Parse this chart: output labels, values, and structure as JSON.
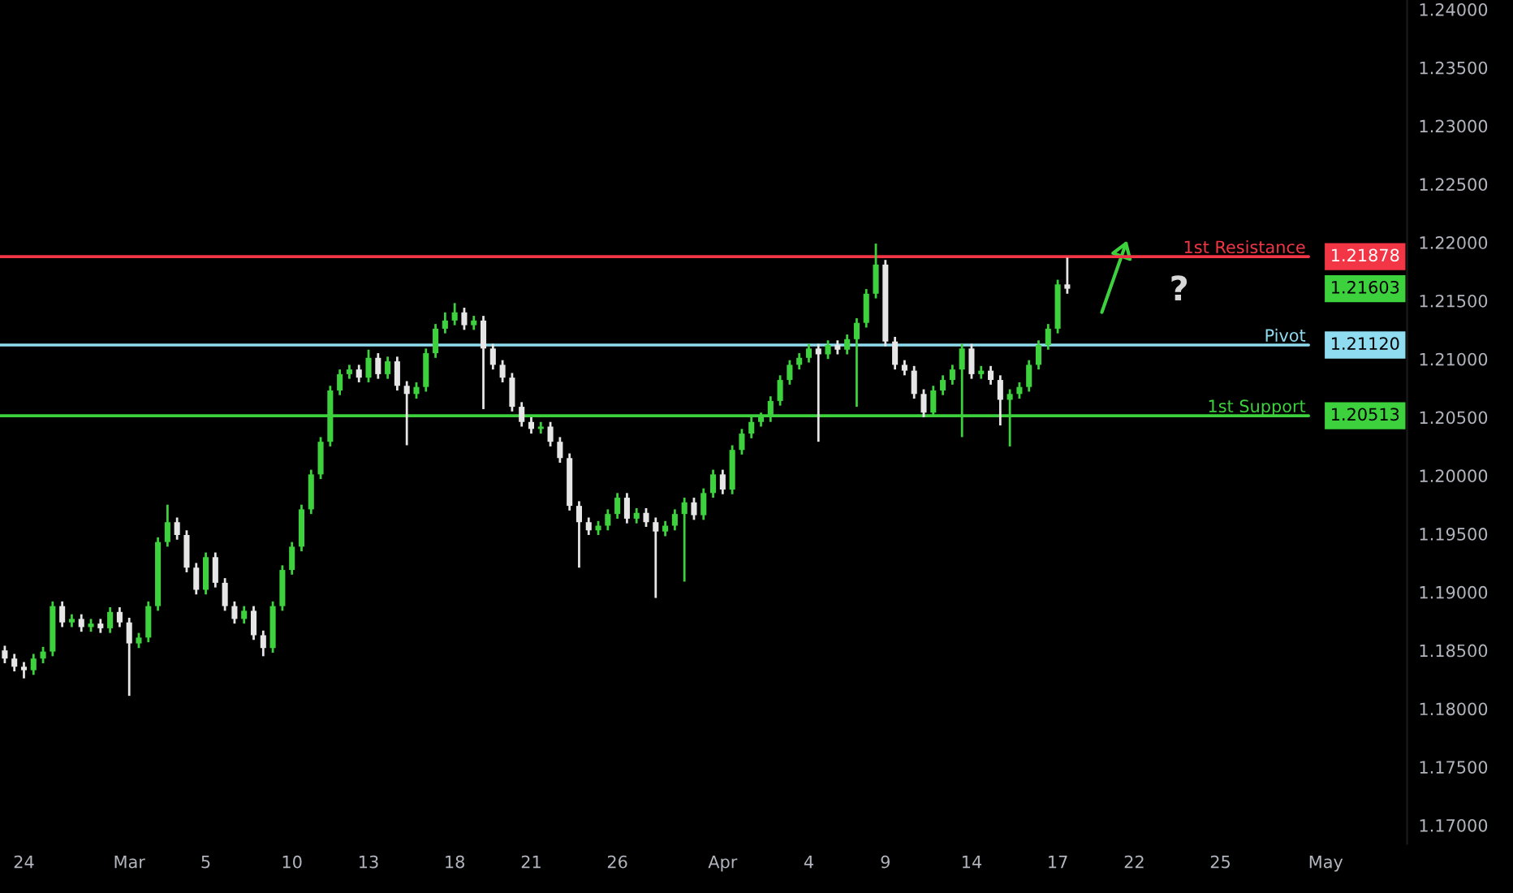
{
  "chart_data": {
    "type": "candlestick",
    "categories": [
      null,
      null,
      "24",
      null,
      null,
      null,
      null,
      null,
      null,
      null,
      null,
      null,
      null,
      "Mar",
      null,
      null,
      null,
      null,
      null,
      null,
      null,
      "5",
      null,
      null,
      null,
      null,
      null,
      null,
      null,
      null,
      "10",
      null,
      null,
      null,
      null,
      null,
      null,
      null,
      "13",
      null,
      null,
      null,
      null,
      null,
      null,
      null,
      null,
      "18",
      null,
      null,
      null,
      null,
      null,
      null,
      null,
      "21",
      null,
      null,
      null,
      null,
      null,
      null,
      null,
      null,
      "26",
      null,
      null,
      null,
      null,
      null,
      null,
      null,
      null,
      null,
      null,
      "Apr",
      null,
      null,
      null,
      null,
      null,
      null,
      null,
      null,
      "4",
      null,
      null,
      null,
      null,
      null,
      null,
      null,
      "9",
      null,
      null,
      null,
      null,
      null,
      null,
      null,
      null,
      "14",
      null,
      null,
      null,
      null,
      null,
      null,
      null,
      null,
      "17",
      null,
      null,
      null,
      null,
      null,
      null,
      null,
      "22",
      null,
      null,
      null,
      null,
      null,
      null,
      null,
      null,
      "25",
      null,
      null,
      null,
      null,
      null,
      null,
      null,
      null,
      null,
      null,
      "May",
      null,
      null,
      null,
      null,
      null,
      null,
      null,
      null
    ],
    "ohlc": [
      [
        1.185,
        1.1854,
        1.1839,
        1.1843
      ],
      [
        1.1843,
        1.1847,
        1.1832,
        1.1836
      ],
      [
        1.1836,
        1.184,
        1.1826,
        1.1833
      ],
      [
        1.1833,
        1.1847,
        1.1829,
        1.1843
      ],
      [
        1.1843,
        1.1853,
        1.1839,
        1.1849
      ],
      [
        1.1849,
        1.1892,
        1.1845,
        1.1888
      ],
      [
        1.1888,
        1.1892,
        1.187,
        1.1874
      ],
      [
        1.1874,
        1.1881,
        1.187,
        1.1877
      ],
      [
        1.1877,
        1.1881,
        1.1866,
        1.187
      ],
      [
        1.187,
        1.1877,
        1.1866,
        1.1873
      ],
      [
        1.1873,
        1.1877,
        1.1865,
        1.1869
      ],
      [
        1.1869,
        1.1887,
        1.1865,
        1.1883
      ],
      [
        1.1883,
        1.1887,
        1.187,
        1.1874
      ],
      [
        1.1874,
        1.1878,
        1.1811,
        1.1856
      ],
      [
        1.1856,
        1.1865,
        1.1852,
        1.1861
      ],
      [
        1.1861,
        1.1892,
        1.1857,
        1.1888
      ],
      [
        1.1888,
        1.1947,
        1.1884,
        1.1943
      ],
      [
        1.1943,
        1.1975,
        1.1939,
        1.196
      ],
      [
        1.196,
        1.1964,
        1.1945,
        1.1949
      ],
      [
        1.1949,
        1.1953,
        1.1917,
        1.1921
      ],
      [
        1.1921,
        1.1925,
        1.1898,
        1.1902
      ],
      [
        1.1902,
        1.1934,
        1.1898,
        1.193
      ],
      [
        1.193,
        1.1934,
        1.1904,
        1.1908
      ],
      [
        1.1908,
        1.1912,
        1.1884,
        1.1888
      ],
      [
        1.1888,
        1.1892,
        1.1873,
        1.1877
      ],
      [
        1.1877,
        1.1888,
        1.1873,
        1.1884
      ],
      [
        1.1884,
        1.1888,
        1.1859,
        1.1863
      ],
      [
        1.1863,
        1.1867,
        1.1845,
        1.1852
      ],
      [
        1.1852,
        1.1892,
        1.1848,
        1.1888
      ],
      [
        1.1888,
        1.1923,
        1.1884,
        1.1919
      ],
      [
        1.1919,
        1.1943,
        1.1915,
        1.1939
      ],
      [
        1.1939,
        1.1975,
        1.1935,
        1.1971
      ],
      [
        1.1971,
        1.2005,
        1.1967,
        1.2001
      ],
      [
        1.2001,
        1.2033,
        1.1997,
        1.2029
      ],
      [
        1.2029,
        1.2077,
        1.2025,
        1.2073
      ],
      [
        1.2073,
        1.2091,
        1.2069,
        1.2087
      ],
      [
        1.2087,
        1.2095,
        1.2083,
        1.2091
      ],
      [
        1.2091,
        1.2095,
        1.208,
        1.2084
      ],
      [
        1.2084,
        1.2108,
        1.208,
        1.2101
      ],
      [
        1.2101,
        1.2105,
        1.2083,
        1.2087
      ],
      [
        1.2087,
        1.2102,
        1.2083,
        1.2098
      ],
      [
        1.2098,
        1.2102,
        1.2073,
        1.2077
      ],
      [
        1.2077,
        1.2081,
        1.2026,
        1.207
      ],
      [
        1.207,
        1.208,
        1.2066,
        1.2076
      ],
      [
        1.2076,
        1.2109,
        1.2072,
        1.2105
      ],
      [
        1.2105,
        1.213,
        1.2101,
        1.2126
      ],
      [
        1.2126,
        1.214,
        1.2122,
        1.2133
      ],
      [
        1.2133,
        1.2148,
        1.2129,
        1.214
      ],
      [
        1.214,
        1.2144,
        1.2125,
        1.2129
      ],
      [
        1.2129,
        1.2137,
        1.2125,
        1.2133
      ],
      [
        1.2133,
        1.2137,
        1.2057,
        1.2109
      ],
      [
        1.2109,
        1.2113,
        1.2091,
        1.2095
      ],
      [
        1.2095,
        1.2099,
        1.208,
        1.2084
      ],
      [
        1.2084,
        1.2088,
        1.2055,
        1.2059
      ],
      [
        1.2059,
        1.2063,
        1.2042,
        1.2046
      ],
      [
        1.2046,
        1.205,
        1.2036,
        1.204
      ],
      [
        1.204,
        1.2046,
        1.2036,
        1.2042
      ],
      [
        1.2042,
        1.2046,
        1.2025,
        1.2029
      ],
      [
        1.2029,
        1.2033,
        1.2011,
        1.2015
      ],
      [
        1.2015,
        1.2019,
        1.197,
        1.1974
      ],
      [
        1.1974,
        1.1978,
        1.1921,
        1.196
      ],
      [
        1.196,
        1.1964,
        1.1949,
        1.1953
      ],
      [
        1.1953,
        1.1961,
        1.1949,
        1.1957
      ],
      [
        1.1957,
        1.1971,
        1.1953,
        1.1967
      ],
      [
        1.1967,
        1.1985,
        1.1963,
        1.1981
      ],
      [
        1.1981,
        1.1985,
        1.1959,
        1.1963
      ],
      [
        1.1963,
        1.1972,
        1.1959,
        1.1968
      ],
      [
        1.1968,
        1.1972,
        1.1956,
        1.196
      ],
      [
        1.196,
        1.1964,
        1.1895,
        1.1952
      ],
      [
        1.1952,
        1.1961,
        1.1948,
        1.1957
      ],
      [
        1.1957,
        1.1971,
        1.1953,
        1.1967
      ],
      [
        1.1967,
        1.1981,
        1.1909,
        1.1977
      ],
      [
        1.1977,
        1.1981,
        1.1962,
        1.1966
      ],
      [
        1.1966,
        1.1989,
        1.1962,
        1.1985
      ],
      [
        1.1985,
        1.2005,
        1.1981,
        1.2001
      ],
      [
        1.2001,
        1.2005,
        1.1984,
        1.1988
      ],
      [
        1.1988,
        1.2026,
        1.1984,
        1.2022
      ],
      [
        1.2022,
        1.204,
        1.2018,
        1.2036
      ],
      [
        1.2036,
        1.205,
        1.2032,
        1.2046
      ],
      [
        1.2046,
        1.2054,
        1.2042,
        1.205
      ],
      [
        1.205,
        1.2068,
        1.2046,
        1.2064
      ],
      [
        1.2064,
        1.2086,
        1.206,
        1.2082
      ],
      [
        1.2082,
        1.2099,
        1.2078,
        1.2095
      ],
      [
        1.2095,
        1.2105,
        1.2091,
        1.2101
      ],
      [
        1.2101,
        1.2113,
        1.2097,
        1.2109
      ],
      [
        1.2109,
        1.2113,
        1.2029,
        1.2104
      ],
      [
        1.2104,
        1.2116,
        1.21,
        1.2112
      ],
      [
        1.2112,
        1.2116,
        1.2104,
        1.2108
      ],
      [
        1.2108,
        1.2121,
        1.2104,
        1.2117
      ],
      [
        1.2117,
        1.2135,
        1.2059,
        1.2131
      ],
      [
        1.2131,
        1.216,
        1.2127,
        1.2156
      ],
      [
        1.2156,
        1.2199,
        1.2152,
        1.2181
      ],
      [
        1.2181,
        1.2185,
        1.2111,
        1.2115
      ],
      [
        1.2115,
        1.2119,
        1.2091,
        1.2095
      ],
      [
        1.2095,
        1.2099,
        1.2086,
        1.209
      ],
      [
        1.209,
        1.2094,
        1.2066,
        1.207
      ],
      [
        1.207,
        1.2074,
        1.205,
        1.2054
      ],
      [
        1.2054,
        1.2077,
        1.205,
        1.2073
      ],
      [
        1.2073,
        1.2086,
        1.2069,
        1.2082
      ],
      [
        1.2082,
        1.2095,
        1.2078,
        1.2091
      ],
      [
        1.2091,
        1.2113,
        1.2033,
        1.2109
      ],
      [
        1.2109,
        1.2113,
        1.2083,
        1.2087
      ],
      [
        1.2087,
        1.2094,
        1.2083,
        1.209
      ],
      [
        1.209,
        1.2094,
        1.2078,
        1.2082
      ],
      [
        1.2082,
        1.2086,
        1.2043,
        1.2065
      ],
      [
        1.2065,
        1.2074,
        1.2025,
        1.207
      ],
      [
        1.207,
        1.208,
        1.2066,
        1.2076
      ],
      [
        1.2076,
        1.2099,
        1.2072,
        1.2095
      ],
      [
        1.2095,
        1.2116,
        1.2091,
        1.2112
      ],
      [
        1.2112,
        1.213,
        1.2108,
        1.2126
      ],
      [
        1.2126,
        1.2168,
        1.2122,
        1.2164
      ],
      [
        1.2164,
        1.2187,
        1.2156,
        1.21603
      ],
      null,
      null,
      null,
      null,
      null,
      null,
      null,
      null,
      null,
      null,
      null,
      null,
      null,
      null,
      null,
      null,
      null,
      null,
      null,
      null,
      null,
      null,
      null,
      null,
      null,
      null,
      null,
      null,
      null,
      null,
      null,
      null,
      null,
      null,
      null
    ],
    "colors": [
      "#e6e6e6",
      "#e6e6e6",
      "#e6e6e6",
      "#3ed13e",
      "#3ed13e",
      "#3ed13e",
      "#e6e6e6",
      "#3ed13e",
      "#e6e6e6",
      "#3ed13e",
      "#e6e6e6",
      "#3ed13e",
      "#e6e6e6",
      "#e6e6e6",
      "#3ed13e",
      "#3ed13e",
      "#3ed13e",
      "#3ed13e",
      "#e6e6e6",
      "#e6e6e6",
      "#e6e6e6",
      "#3ed13e",
      "#e6e6e6",
      "#e6e6e6",
      "#e6e6e6",
      "#3ed13e",
      "#e6e6e6",
      "#e6e6e6",
      "#3ed13e",
      "#3ed13e",
      "#3ed13e",
      "#3ed13e",
      "#3ed13e",
      "#3ed13e",
      "#3ed13e",
      "#3ed13e",
      "#3ed13e",
      "#e6e6e6",
      "#3ed13e",
      "#e6e6e6",
      "#3ed13e",
      "#e6e6e6",
      "#e6e6e6",
      "#3ed13e",
      "#3ed13e",
      "#3ed13e",
      "#3ed13e",
      "#3ed13e",
      "#e6e6e6",
      "#3ed13e",
      "#e6e6e6",
      "#e6e6e6",
      "#e6e6e6",
      "#e6e6e6",
      "#e6e6e6",
      "#e6e6e6",
      "#3ed13e",
      "#e6e6e6",
      "#e6e6e6",
      "#e6e6e6",
      "#e6e6e6",
      "#e6e6e6",
      "#3ed13e",
      "#3ed13e",
      "#3ed13e",
      "#e6e6e6",
      "#3ed13e",
      "#e6e6e6",
      "#e6e6e6",
      "#3ed13e",
      "#3ed13e",
      "#3ed13e",
      "#e6e6e6",
      "#3ed13e",
      "#3ed13e",
      "#e6e6e6",
      "#3ed13e",
      "#3ed13e",
      "#3ed13e",
      "#3ed13e",
      "#3ed13e",
      "#3ed13e",
      "#3ed13e",
      "#3ed13e",
      "#3ed13e",
      "#e6e6e6",
      "#3ed13e",
      "#e6e6e6",
      "#3ed13e",
      "#3ed13e",
      "#3ed13e",
      "#3ed13e",
      "#e6e6e6",
      "#e6e6e6",
      "#e6e6e6",
      "#e6e6e6",
      "#e6e6e6",
      "#3ed13e",
      "#3ed13e",
      "#3ed13e",
      "#3ed13e",
      "#e6e6e6",
      "#3ed13e",
      "#e6e6e6",
      "#e6e6e6",
      "#3ed13e",
      "#3ed13e",
      "#3ed13e",
      "#3ed13e",
      "#3ed13e",
      "#3ed13e",
      "#e6e6e6",
      null,
      null,
      null,
      null,
      null,
      null,
      null,
      null,
      null,
      null,
      null,
      null,
      null,
      null,
      null,
      null,
      null,
      null,
      null,
      null,
      null,
      null,
      null,
      null,
      null,
      null,
      null,
      null,
      null,
      null,
      null,
      null,
      null,
      null,
      null
    ],
    "ylim": [
      1.1684,
      1.2408
    ],
    "yticks": [
      {
        "value": 1.17,
        "label": "1.17000"
      },
      {
        "value": 1.175,
        "label": "1.17500"
      },
      {
        "value": 1.18,
        "label": "1.18000"
      },
      {
        "value": 1.185,
        "label": "1.18500"
      },
      {
        "value": 1.19,
        "label": "1.19000"
      },
      {
        "value": 1.195,
        "label": "1.19500"
      },
      {
        "value": 1.2,
        "label": "1.20000"
      },
      {
        "value": 1.205,
        "label": "1.20500"
      },
      {
        "value": 1.21,
        "label": "1.21000"
      },
      {
        "value": 1.215,
        "label": "1.21500"
      },
      {
        "value": 1.22,
        "label": "1.22000"
      },
      {
        "value": 1.225,
        "label": "1.22500"
      },
      {
        "value": 1.23,
        "label": "1.23000"
      },
      {
        "value": 1.235,
        "label": "1.23500"
      },
      {
        "value": 1.24,
        "label": "1.24000"
      }
    ],
    "ref_lines": [
      {
        "axis": "y",
        "value": 1.21878,
        "label": "1st Resistance",
        "color": "#f23645"
      },
      {
        "axis": "y",
        "value": 1.2112,
        "label": "Pivot",
        "color": "#8fdcf0"
      },
      {
        "axis": "y",
        "value": 1.20513,
        "label": "1st Support",
        "color": "#3ed13e"
      }
    ],
    "annotations": [
      "1.21878",
      "1.21120",
      "1.20513",
      "1.21603",
      "?"
    ],
    "grid": false,
    "legend": false
  }
}
